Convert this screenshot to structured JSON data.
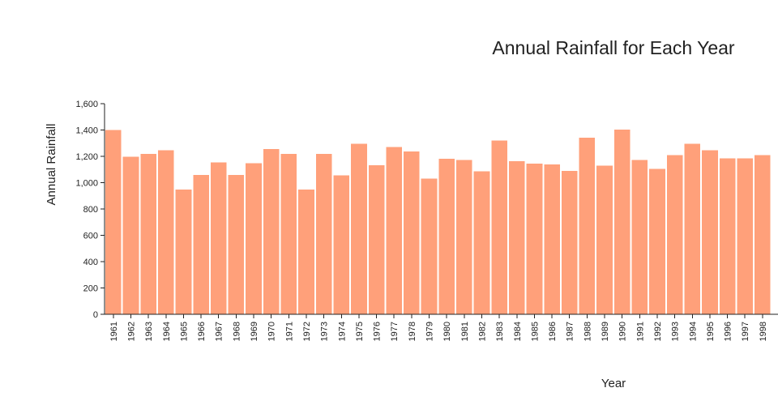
{
  "chart_data": {
    "type": "bar",
    "title": "Annual Rainfall for Each Year",
    "xlabel": "Year",
    "ylabel": "Annual Rainfall",
    "ylim": [
      0,
      1600
    ],
    "yticks": [
      0,
      200,
      400,
      600,
      800,
      1000,
      1200,
      1400,
      1600
    ],
    "ytick_labels": [
      "0",
      "200",
      "400",
      "600",
      "800",
      "1,000",
      "1,200",
      "1,400",
      "1,600"
    ],
    "grid": false,
    "bar_color": "#ffa07a",
    "categories": [
      "1961",
      "1962",
      "1963",
      "1964",
      "1965",
      "1966",
      "1967",
      "1968",
      "1969",
      "1970",
      "1971",
      "1972",
      "1973",
      "1974",
      "1975",
      "1976",
      "1977",
      "1978",
      "1979",
      "1980",
      "1981",
      "1982",
      "1983",
      "1984",
      "1985",
      "1986",
      "1987",
      "1988",
      "1989",
      "1990",
      "1991",
      "1992",
      "1993",
      "1994",
      "1995",
      "1996",
      "1997",
      "1998"
    ],
    "values": [
      1400,
      1198,
      1220,
      1245,
      948,
      1058,
      1155,
      1060,
      1148,
      1255,
      1218,
      948,
      1220,
      1055,
      1295,
      1132,
      1270,
      1238,
      1030,
      1182,
      1172,
      1085,
      1320,
      1162,
      1145,
      1140,
      1088,
      1342,
      1128,
      1402,
      1172,
      1105,
      1210,
      1295,
      1245,
      1185,
      1185,
      1210
    ]
  }
}
